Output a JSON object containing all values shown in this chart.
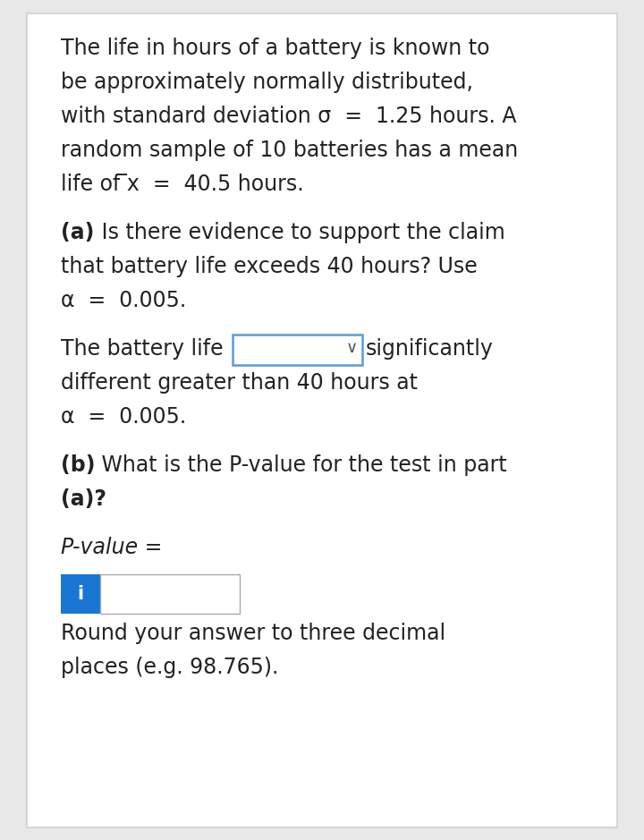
{
  "bg_color": "#ffffff",
  "outer_bg": "#e8e8e8",
  "border_color": "#d0d0d0",
  "text_color": "#222222",
  "font_size_main": 17,
  "dropdown_border_color": "#5b9bd5",
  "info_box_bg": "#1976D2",
  "info_box_border": "#aaaaaa",
  "para1_lines": [
    "The life in hours of a battery is known to",
    "be approximately normally distributed,",
    "with standard deviation σ  =  1.25 hours. A",
    "random sample of 10 batteries has a mean",
    "life of ̅x  =  40.5 hours."
  ],
  "para2_line1_bold": "(a)",
  "para2_line1_rest": " Is there evidence to support the claim",
  "para2_lines": [
    "that battery life exceeds 40 hours? Use",
    "α  =  0.005."
  ],
  "dropdown_line_pre": "The battery life",
  "dropdown_line_post": "∨significantly",
  "answer_lines": [
    "different greater than 40 hours at",
    "α  =  0.005."
  ],
  "para3_line1_bold": "(b)",
  "para3_line1_rest": " What is the P-value for the test in part",
  "para3_line2_bold": "(a)?",
  "pvalue_label": "P-value =",
  "round_lines": [
    "Round your answer to three decimal",
    "places (e.g. 98.765)."
  ]
}
